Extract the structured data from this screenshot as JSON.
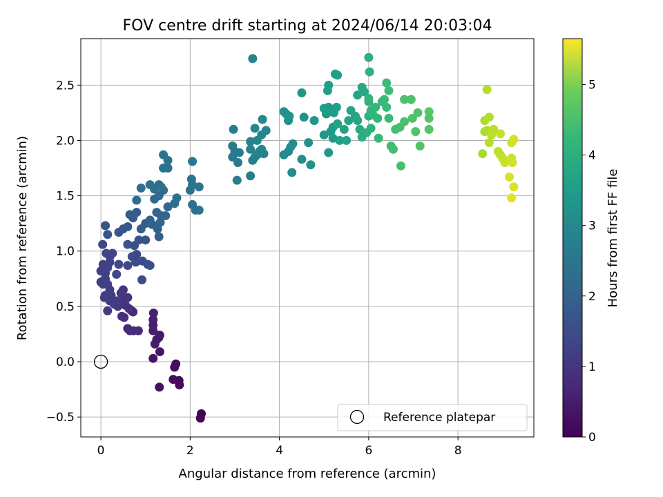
{
  "chart_data": {
    "type": "scatter",
    "title": "FOV centre drift starting at 2024/06/14 20:03:04",
    "xlabel": "Angular distance from reference (arcmin)",
    "ylabel": "Rotation from reference (arcmin)",
    "xlim": [
      -0.45,
      9.7
    ],
    "ylim": [
      -0.68,
      2.92
    ],
    "xticks": [
      {
        "v": 0,
        "label": "0"
      },
      {
        "v": 2,
        "label": "2"
      },
      {
        "v": 4,
        "label": "4"
      },
      {
        "v": 6,
        "label": "6"
      },
      {
        "v": 8,
        "label": "8"
      }
    ],
    "yticks": [
      {
        "v": -0.5,
        "label": "−0.5"
      },
      {
        "v": 0,
        "label": "0.0"
      },
      {
        "v": 0.5,
        "label": "0.5"
      },
      {
        "v": 1,
        "label": "1.0"
      },
      {
        "v": 1.5,
        "label": "1.5"
      },
      {
        "v": 2,
        "label": "2.0"
      },
      {
        "v": 2.5,
        "label": "2.5"
      }
    ],
    "grid": true,
    "colormap": "viridis",
    "colorbar": {
      "label": "Hours from first FF file",
      "range": [
        0,
        5.65
      ],
      "ticks": [
        {
          "v": 0,
          "label": "0"
        },
        {
          "v": 1,
          "label": "1"
        },
        {
          "v": 2,
          "label": "2"
        },
        {
          "v": 3,
          "label": "3"
        },
        {
          "v": 4,
          "label": "4"
        },
        {
          "v": 5,
          "label": "5"
        }
      ]
    },
    "reference_point": {
      "x": 0,
      "y": 0,
      "marker": "open-circle"
    },
    "legend": {
      "location": "lower-right",
      "entries": [
        "Reference platepar"
      ]
    },
    "points": [
      [
        2.25,
        -0.47,
        0.05
      ],
      [
        2.23,
        -0.51,
        0.05
      ],
      [
        1.75,
        -0.17,
        0.15
      ],
      [
        1.76,
        -0.21,
        0.15
      ],
      [
        1.62,
        -0.16,
        0.17
      ],
      [
        1.68,
        -0.02,
        0.2
      ],
      [
        1.65,
        -0.05,
        0.2
      ],
      [
        1.31,
        -0.23,
        0.25
      ],
      [
        1.17,
        0.03,
        0.3
      ],
      [
        1.32,
        0.09,
        0.33
      ],
      [
        1.32,
        0.24,
        0.38
      ],
      [
        1.25,
        0.2,
        0.4
      ],
      [
        1.3,
        0.22,
        0.42
      ],
      [
        1.21,
        0.16,
        0.43
      ],
      [
        1.17,
        0.28,
        0.45
      ],
      [
        1.17,
        0.33,
        0.48
      ],
      [
        1.17,
        0.38,
        0.5
      ],
      [
        1.18,
        0.44,
        0.52
      ],
      [
        0.69,
        0.46,
        0.6
      ],
      [
        0.72,
        0.45,
        0.62
      ],
      [
        0.65,
        0.28,
        0.65
      ],
      [
        0.6,
        0.3,
        0.67
      ],
      [
        0.73,
        0.28,
        0.7
      ],
      [
        0.84,
        0.28,
        0.72
      ],
      [
        0.47,
        0.41,
        0.75
      ],
      [
        0.52,
        0.4,
        0.78
      ],
      [
        0.55,
        0.51,
        0.8
      ],
      [
        0.63,
        0.48,
        0.82
      ],
      [
        0.5,
        0.55,
        0.85
      ],
      [
        0.6,
        0.58,
        0.87
      ],
      [
        0.45,
        0.62,
        0.9
      ],
      [
        0.5,
        0.65,
        0.92
      ],
      [
        0.38,
        0.5,
        0.95
      ],
      [
        0.3,
        0.52,
        0.97
      ],
      [
        0.36,
        0.55,
        1.0
      ],
      [
        0.23,
        0.6,
        1.0
      ],
      [
        0.15,
        0.46,
        1.02
      ],
      [
        0.2,
        0.55,
        1.03
      ],
      [
        0.1,
        0.6,
        1.05
      ],
      [
        0.08,
        0.58,
        1.05
      ],
      [
        0.2,
        0.65,
        1.07
      ],
      [
        0.15,
        0.7,
        1.07
      ],
      [
        0.05,
        0.7,
        1.08
      ],
      [
        0.0,
        0.72,
        1.08
      ],
      [
        0.1,
        0.75,
        1.1
      ],
      [
        0.1,
        0.8,
        1.1
      ],
      [
        0.0,
        0.82,
        1.12
      ],
      [
        0.05,
        0.88,
        1.12
      ],
      [
        0.15,
        0.85,
        1.14
      ],
      [
        0.2,
        0.9,
        1.15
      ],
      [
        0.26,
        0.98,
        1.17
      ],
      [
        0.2,
        0.95,
        1.18
      ],
      [
        0.12,
        0.98,
        1.2
      ],
      [
        0.04,
        1.06,
        1.2
      ],
      [
        0.35,
        0.79,
        1.22
      ],
      [
        0.4,
        0.88,
        1.22
      ],
      [
        0.6,
        0.87,
        1.25
      ],
      [
        0.7,
        0.95,
        1.27
      ],
      [
        0.8,
        0.97,
        1.28
      ],
      [
        0.78,
        0.9,
        1.3
      ],
      [
        0.93,
        0.91,
        1.32
      ],
      [
        0.92,
        0.74,
        1.33
      ],
      [
        1.05,
        0.88,
        1.35
      ],
      [
        1.1,
        0.87,
        1.37
      ],
      [
        0.75,
        1.05,
        1.4
      ],
      [
        0.6,
        1.06,
        1.42
      ],
      [
        0.85,
        1.1,
        1.45
      ],
      [
        1.0,
        1.1,
        1.47
      ],
      [
        0.1,
        1.23,
        1.45
      ],
      [
        0.15,
        1.15,
        1.47
      ],
      [
        0.4,
        1.17,
        1.5
      ],
      [
        0.5,
        1.2,
        1.52
      ],
      [
        0.6,
        1.22,
        1.55
      ],
      [
        0.72,
        1.3,
        1.57
      ],
      [
        0.65,
        1.33,
        1.6
      ],
      [
        0.8,
        1.35,
        1.62
      ],
      [
        0.9,
        1.2,
        1.65
      ],
      [
        1.0,
        1.25,
        1.67
      ],
      [
        1.1,
        1.28,
        1.7
      ],
      [
        1.15,
        1.24,
        1.72
      ],
      [
        1.3,
        1.13,
        1.75
      ],
      [
        1.27,
        1.2,
        1.77
      ],
      [
        1.33,
        1.26,
        1.8
      ],
      [
        1.25,
        1.35,
        1.82
      ],
      [
        1.35,
        1.32,
        1.85
      ],
      [
        1.45,
        1.32,
        1.87
      ],
      [
        1.5,
        1.4,
        1.9
      ],
      [
        1.2,
        1.47,
        1.9
      ],
      [
        1.3,
        1.5,
        1.92
      ],
      [
        1.4,
        1.55,
        1.95
      ],
      [
        1.3,
        1.6,
        1.97
      ],
      [
        0.8,
        1.46,
        2.0
      ],
      [
        0.9,
        1.57,
        2.02
      ],
      [
        1.1,
        1.6,
        2.03
      ],
      [
        1.2,
        1.56,
        2.05
      ],
      [
        1.35,
        1.58,
        2.07
      ],
      [
        1.65,
        1.43,
        2.05
      ],
      [
        1.7,
        1.48,
        2.08
      ],
      [
        1.4,
        1.75,
        2.1
      ],
      [
        1.5,
        1.75,
        2.12
      ],
      [
        1.5,
        1.82,
        2.13
      ],
      [
        1.4,
        1.87,
        2.15
      ],
      [
        2.05,
        1.42,
        2.1
      ],
      [
        2.12,
        1.37,
        2.12
      ],
      [
        2.2,
        1.37,
        2.15
      ],
      [
        2.0,
        1.55,
        2.17
      ],
      [
        2.05,
        1.6,
        2.18
      ],
      [
        2.03,
        1.65,
        2.2
      ],
      [
        2.2,
        1.58,
        2.22
      ],
      [
        2.05,
        1.81,
        2.25
      ],
      [
        2.95,
        1.85,
        2.3
      ],
      [
        3.0,
        1.9,
        2.32
      ],
      [
        3.07,
        1.8,
        2.33
      ],
      [
        3.1,
        1.89,
        2.35
      ],
      [
        2.95,
        1.95,
        2.37
      ],
      [
        3.05,
        1.64,
        2.38
      ],
      [
        2.97,
        2.1,
        2.4
      ],
      [
        3.35,
        1.68,
        2.42
      ],
      [
        3.4,
        1.82,
        2.45
      ],
      [
        3.45,
        1.85,
        2.47
      ],
      [
        3.35,
        1.92,
        2.48
      ],
      [
        3.5,
        1.87,
        2.5
      ],
      [
        3.55,
        1.9,
        2.52
      ],
      [
        3.65,
        1.88,
        2.53
      ],
      [
        3.6,
        1.92,
        2.55
      ],
      [
        3.35,
        1.99,
        2.57
      ],
      [
        3.5,
        2.0,
        2.58
      ],
      [
        3.6,
        2.05,
        2.6
      ],
      [
        3.7,
        2.09,
        2.62
      ],
      [
        3.45,
        2.11,
        2.63
      ],
      [
        3.62,
        2.19,
        2.65
      ],
      [
        3.4,
        2.74,
        2.55
      ],
      [
        4.1,
        1.87,
        2.7
      ],
      [
        4.2,
        1.9,
        2.72
      ],
      [
        4.25,
        1.94,
        2.75
      ],
      [
        4.3,
        1.97,
        2.77
      ],
      [
        4.28,
        1.71,
        2.78
      ],
      [
        4.5,
        1.83,
        2.8
      ],
      [
        4.7,
        1.78,
        2.82
      ],
      [
        4.65,
        1.98,
        2.83
      ],
      [
        4.55,
        2.21,
        2.85
      ],
      [
        4.2,
        2.18,
        2.87
      ],
      [
        4.1,
        2.26,
        2.88
      ],
      [
        4.15,
        2.24,
        2.9
      ],
      [
        4.22,
        2.22,
        2.92
      ],
      [
        4.5,
        2.43,
        2.93
      ],
      [
        4.78,
        2.18,
        2.95
      ],
      [
        5.0,
        2.05,
        2.97
      ],
      [
        5.1,
        1.89,
        3.0
      ],
      [
        5.2,
        2.02,
        3.02
      ],
      [
        5.15,
        2.08,
        3.03
      ],
      [
        5.2,
        2.12,
        3.05
      ],
      [
        5.05,
        2.24,
        3.07
      ],
      [
        5.1,
        2.3,
        3.08
      ],
      [
        5.0,
        2.29,
        3.1
      ],
      [
        5.22,
        2.25,
        3.12
      ],
      [
        5.28,
        2.3,
        3.13
      ],
      [
        5.08,
        2.45,
        3.15
      ],
      [
        5.1,
        2.5,
        3.17
      ],
      [
        5.25,
        2.6,
        3.18
      ],
      [
        5.3,
        2.59,
        3.2
      ],
      [
        5.35,
        2.0,
        3.22
      ],
      [
        5.5,
        2.0,
        3.23
      ],
      [
        5.45,
        2.1,
        3.25
      ],
      [
        5.3,
        2.15,
        3.27
      ],
      [
        5.55,
        2.18,
        3.28
      ],
      [
        5.7,
        2.22,
        3.3
      ],
      [
        5.6,
        2.27,
        3.32
      ],
      [
        5.75,
        2.18,
        3.33
      ],
      [
        5.75,
        2.41,
        3.35
      ],
      [
        5.9,
        2.44,
        3.37
      ],
      [
        5.85,
        2.48,
        3.38
      ],
      [
        5.8,
        2.1,
        3.45
      ],
      [
        5.85,
        2.03,
        3.5
      ],
      [
        5.95,
        2.07,
        3.55
      ],
      [
        6.0,
        2.22,
        3.6
      ],
      [
        6.05,
        2.11,
        3.62
      ],
      [
        6.0,
        2.35,
        3.65
      ],
      [
        6.05,
        2.27,
        3.68
      ],
      [
        6.0,
        2.38,
        3.7
      ],
      [
        6.1,
        2.23,
        3.72
      ],
      [
        6.15,
        2.3,
        3.73
      ],
      [
        6.2,
        2.2,
        3.75
      ],
      [
        6.0,
        2.75,
        3.6
      ],
      [
        6.02,
        2.62,
        3.62
      ],
      [
        6.22,
        2.02,
        3.78
      ],
      [
        6.3,
        2.35,
        3.8
      ],
      [
        6.35,
        2.37,
        3.82
      ],
      [
        6.4,
        2.3,
        3.83
      ],
      [
        6.45,
        2.2,
        3.85
      ],
      [
        6.4,
        2.52,
        3.87
      ],
      [
        6.45,
        2.45,
        3.88
      ],
      [
        6.5,
        1.95,
        3.9
      ],
      [
        6.55,
        1.92,
        3.92
      ],
      [
        6.6,
        2.1,
        3.93
      ],
      [
        6.72,
        1.77,
        3.95
      ],
      [
        6.7,
        2.12,
        3.97
      ],
      [
        6.8,
        2.17,
        4.0
      ],
      [
        6.8,
        2.37,
        4.02
      ],
      [
        6.95,
        2.37,
        4.03
      ],
      [
        6.98,
        2.2,
        4.05
      ],
      [
        7.05,
        2.08,
        4.07
      ],
      [
        7.1,
        2.25,
        4.08
      ],
      [
        7.15,
        1.95,
        4.1
      ],
      [
        7.35,
        2.1,
        4.12
      ],
      [
        7.35,
        2.2,
        4.13
      ],
      [
        7.35,
        2.26,
        4.15
      ],
      [
        8.55,
        1.88,
        4.9
      ],
      [
        8.6,
        2.08,
        4.92
      ],
      [
        8.6,
        2.18,
        4.95
      ],
      [
        8.65,
        2.09,
        4.97
      ],
      [
        8.7,
        2.21,
        5.0
      ],
      [
        8.65,
        2.46,
        5.02
      ],
      [
        8.7,
        1.98,
        5.05
      ],
      [
        8.8,
        2.1,
        5.07
      ],
      [
        8.75,
        2.05,
        5.08
      ],
      [
        8.9,
        1.9,
        5.1
      ],
      [
        8.95,
        1.87,
        5.12
      ],
      [
        8.95,
        2.06,
        5.15
      ],
      [
        9.0,
        1.84,
        5.17
      ],
      [
        9.05,
        1.8,
        5.2
      ],
      [
        9.2,
        1.84,
        5.22
      ],
      [
        9.2,
        1.98,
        5.25
      ],
      [
        9.22,
        1.8,
        5.27
      ],
      [
        9.25,
        2.01,
        5.3
      ],
      [
        9.15,
        1.67,
        5.32
      ],
      [
        9.25,
        1.58,
        5.35
      ],
      [
        9.2,
        1.48,
        5.4
      ]
    ]
  }
}
